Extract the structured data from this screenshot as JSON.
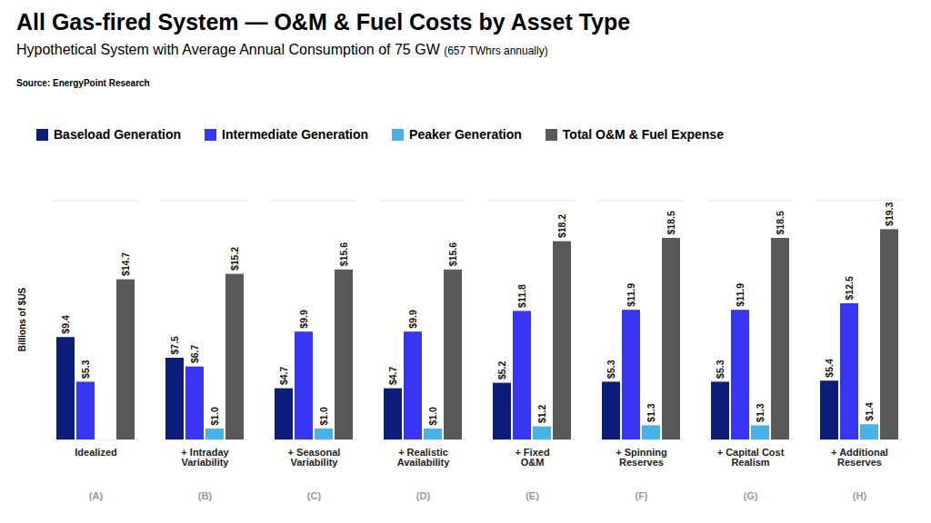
{
  "chart_data": {
    "type": "bar",
    "title": "All Gas-fired System — O&M & Fuel Costs by Asset Type",
    "subtitle": "Hypothetical System with Average Annual Consumption of 75 GW",
    "subtitle_note": "(657 TWhrs annually)",
    "source": "Source: EnergyPoint Research",
    "y_label": "Billions of $US",
    "categories": [
      "Idealized",
      "+ Intraday Variability",
      "+ Seasonal Variability",
      "+ Realistic Availability",
      "+ Fixed O&M",
      "+ Spinning Reserves",
      "+ Capital Cost Realism",
      "+ Additional Reserves"
    ],
    "category_notes": [
      "(A)",
      "(B)",
      "(C)",
      "(D)",
      "(E)",
      "(F)",
      "(G)",
      "(H)"
    ],
    "series": [
      {
        "name": "Baseload Generation",
        "color": "#0c1d7a",
        "values": [
          9.4,
          7.5,
          4.7,
          4.7,
          5.2,
          5.3,
          5.3,
          5.4
        ],
        "value_labels": [
          "$9.4",
          "$7.5",
          "$4.7",
          "$4.7",
          "$5.2",
          "$5.3",
          "$5.3",
          "$5.4"
        ]
      },
      {
        "name": "Intermediate Generation",
        "color": "#3535f2",
        "values": [
          5.3,
          6.7,
          9.9,
          9.9,
          11.8,
          11.9,
          11.9,
          12.5
        ],
        "value_labels": [
          "$5.3",
          "$6.7",
          "$9.9",
          "$9.9",
          "$11.8",
          "$11.9",
          "$11.9",
          "$12.5"
        ]
      },
      {
        "name": "Peaker Generation",
        "color": "#47b3e6",
        "values": [
          null,
          1.0,
          1.0,
          1.0,
          1.2,
          1.3,
          1.3,
          1.4
        ],
        "value_labels": [
          null,
          "$1.0",
          "$1.0",
          "$1.0",
          "$1.2",
          "$1.3",
          "$1.3",
          "$1.4"
        ]
      },
      {
        "name": "Total O&M & Fuel Expense",
        "color": "#595959",
        "values": [
          14.7,
          15.2,
          15.6,
          15.6,
          18.2,
          18.5,
          18.5,
          19.3
        ],
        "value_labels": [
          "$14.7",
          "$15.2",
          "$15.6",
          "$15.6",
          "$18.2",
          "$18.5",
          "$18.5",
          "$19.3"
        ]
      }
    ],
    "ylim": [
      0,
      22
    ],
    "yticks": [],
    "tick_labels": "x",
    "grid": false,
    "legend": "top-left",
    "data_labels": true
  }
}
